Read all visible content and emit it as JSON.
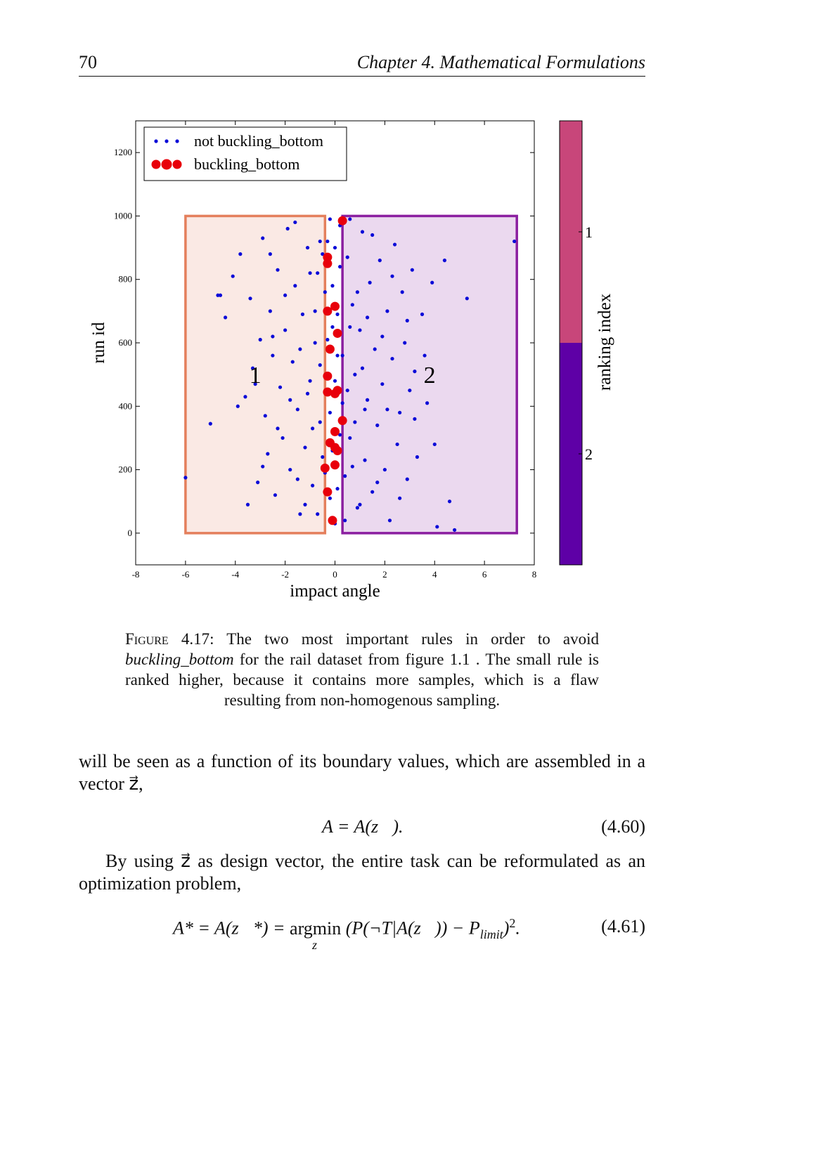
{
  "header": {
    "page": "70",
    "chapter": "Chapter 4. Mathematical Formulations"
  },
  "chart_data": {
    "type": "scatter",
    "xlabel": "impact angle",
    "ylabel": "run id",
    "xlim": [
      -8,
      8
    ],
    "ylim": [
      -100,
      1300
    ],
    "xticks": [
      -8,
      -6,
      -4,
      -2,
      0,
      2,
      4,
      6,
      8
    ],
    "yticks": [
      0,
      200,
      400,
      600,
      800,
      1000,
      1200
    ],
    "legend": "upper left",
    "series": [
      {
        "name": "not buckling_bottom",
        "color": "#0a0ad8",
        "x": [
          -5.0,
          -4.6,
          -4.4,
          -4.1,
          -3.9,
          -3.8,
          -3.6,
          -3.5,
          -3.4,
          -3.3,
          -3.1,
          -3.0,
          -2.9,
          -2.8,
          -2.7,
          -2.6,
          -2.5,
          -2.4,
          -2.3,
          -2.2,
          -2.1,
          -2.0,
          -1.9,
          -1.8,
          -1.7,
          -1.6,
          -1.5,
          -1.4,
          -1.3,
          -1.2,
          -1.1,
          -1.0,
          -0.9,
          -0.8,
          -0.7,
          -0.6,
          -0.5,
          -0.4,
          -0.3,
          -0.2,
          -0.1,
          0,
          0.1,
          0.2,
          0.3,
          0.4,
          0.5,
          0.6,
          0.7,
          0.8,
          0.9,
          1.0,
          1.1,
          1.2,
          1.3,
          1.4,
          1.5,
          1.6,
          1.7,
          1.8,
          1.9,
          2.0,
          2.1,
          2.2,
          2.3,
          2.4,
          2.5,
          2.6,
          2.7,
          2.8,
          2.9,
          3.0,
          3.1,
          3.2,
          3.3,
          3.5,
          3.7,
          3.9,
          4.1,
          4.4,
          4.8,
          5.3,
          7.2,
          -6.0,
          4.6,
          -4.7,
          -3.2,
          -2.9,
          -2.6,
          -2.3,
          -2.0,
          -1.8,
          -1.6,
          -1.4,
          -1.2,
          -1.0,
          -0.9,
          -0.8,
          -0.7,
          -0.6,
          -0.5,
          -0.4,
          -0.3,
          -0.2,
          -0.2,
          -0.1,
          -0.1,
          0,
          0,
          0.1,
          0.1,
          0.2,
          0.2,
          0.3,
          0.4,
          0.5,
          0.6,
          0.7,
          0.8,
          0.9,
          1.0,
          1.1,
          1.3,
          1.5,
          1.7,
          1.9,
          2.1,
          2.3,
          2.6,
          2.9,
          3.2,
          3.6,
          4.0,
          -1.5,
          -2.5,
          0.6,
          -0.6,
          1.2,
          -1.1
        ],
        "y": [
          345,
          750,
          680,
          810,
          400,
          880,
          430,
          90,
          740,
          520,
          160,
          610,
          930,
          370,
          250,
          700,
          560,
          120,
          830,
          460,
          300,
          640,
          960,
          200,
          540,
          780,
          390,
          60,
          690,
          270,
          900,
          480,
          150,
          600,
          820,
          350,
          240,
          760,
          920,
          110,
          650,
          30,
          560,
          970,
          410,
          180,
          870,
          300,
          720,
          500,
          80,
          640,
          950,
          230,
          420,
          790,
          130,
          580,
          340,
          860,
          470,
          200,
          700,
          40,
          550,
          910,
          280,
          380,
          760,
          600,
          170,
          450,
          830,
          510,
          240,
          690,
          410,
          790,
          20,
          860,
          10,
          740,
          920,
          175,
          100,
          750,
          470,
          210,
          880,
          330,
          750,
          420,
          980,
          580,
          90,
          820,
          330,
          700,
          60,
          530,
          880,
          190,
          610,
          380,
          990,
          260,
          780,
          480,
          900,
          140,
          690,
          310,
          840,
          560,
          40,
          450,
          990,
          210,
          350,
          760,
          90,
          520,
          680,
          940,
          160,
          620,
          390,
          810,
          110,
          670,
          360,
          560,
          280,
          170,
          620,
          650,
          920,
          390,
          440
        ]
      },
      {
        "name": "buckling_bottom",
        "color": "#e8000b",
        "x": [
          -0.3,
          -0.3,
          0,
          -0.3,
          0.1,
          -0.2,
          -0.3,
          0.1,
          -0.3,
          0,
          0.3,
          0,
          -0.2,
          0,
          0.1,
          -0.4,
          0,
          -0.3,
          -0.1,
          0.3
        ],
        "y": [
          870,
          850,
          715,
          700,
          630,
          580,
          495,
          450,
          445,
          440,
          355,
          320,
          285,
          270,
          260,
          205,
          215,
          130,
          40,
          985
        ]
      }
    ],
    "regions": [
      {
        "label": "1",
        "xlim": [
          -6,
          -0.4
        ],
        "ylim": [
          0,
          1000
        ],
        "color": "#e47f5c"
      },
      {
        "label": "2",
        "xlim": [
          0.3,
          7.3
        ],
        "ylim": [
          0,
          1000
        ],
        "color": "#8b1fa0"
      }
    ],
    "colorbar": {
      "label": "ranking index",
      "ticks": [
        "1",
        "2"
      ],
      "colors": [
        "#c8467a",
        "#5e00a6"
      ]
    }
  },
  "caption": {
    "label": "Figure 4.17:",
    "before": "The two most important rules in order to avoid",
    "emphasis": "buckling_bottom",
    "after": "for the rail dataset from figure 1.1 . The small rule is ranked higher, because it contains more samples, which is a flaw resulting from non-homogenous sampling."
  },
  "paragraphs": [
    "will be seen as a function of its boundary values, which are assembled in a vector z⃗,",
    "By using z⃗ as design vector, the entire task can be reformulated as an optimization problem,"
  ],
  "equations": [
    {
      "expression": "A = A(z⃗).",
      "number": "(4.60)"
    },
    {
      "lhs": "A* = A(z⃗*) =",
      "op": "argmin",
      "under": "z⃗",
      "rhs": "(P(¬T|A(z⃗)) − P",
      "sub": "limit",
      "close": ")",
      "sup": "2",
      "end": ".",
      "number": "(4.61)"
    }
  ]
}
